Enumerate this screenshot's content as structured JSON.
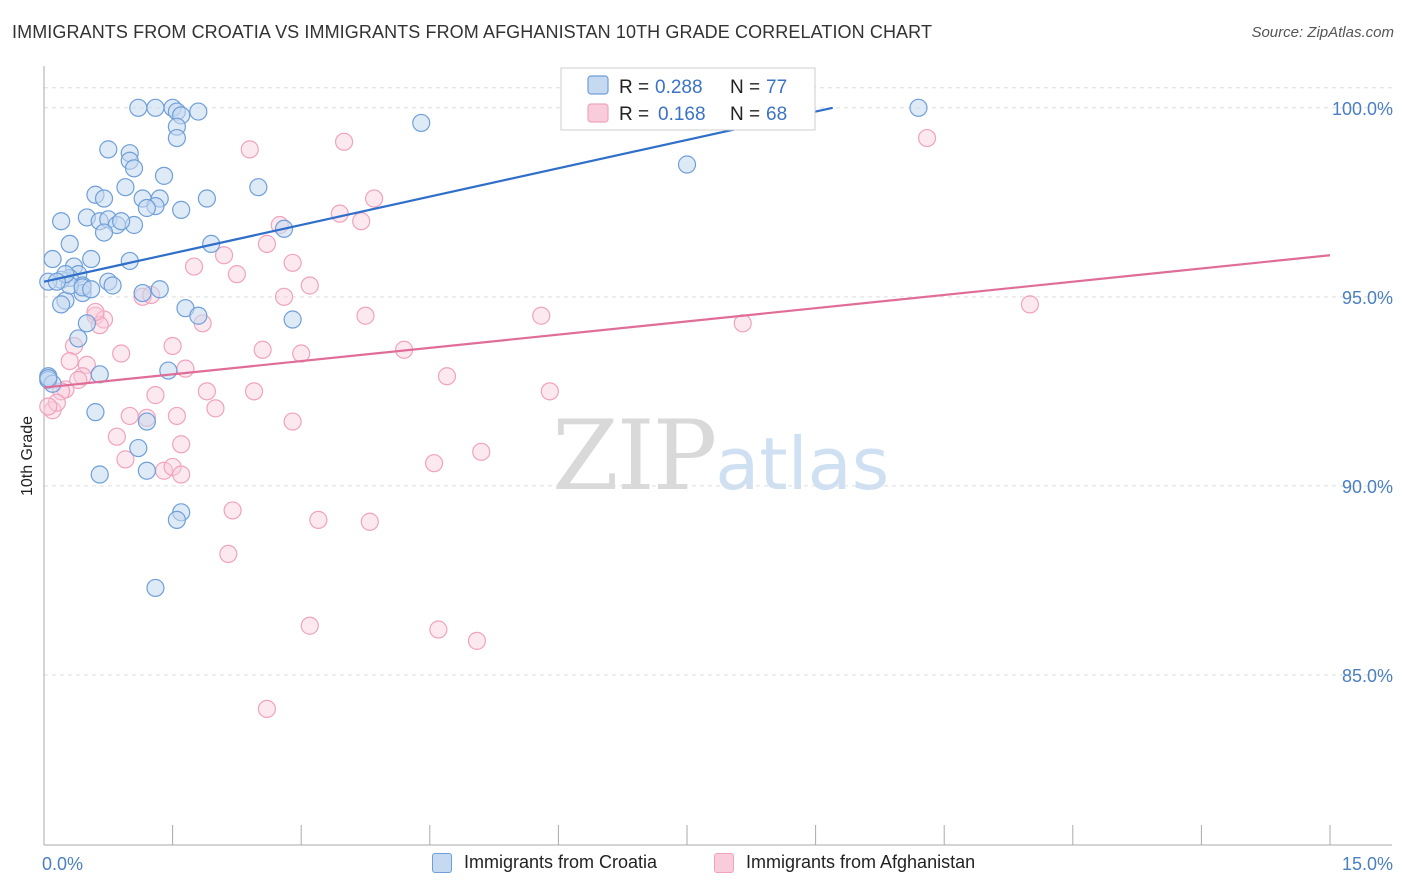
{
  "title": "IMMIGRANTS FROM CROATIA VS IMMIGRANTS FROM AFGHANISTAN 10TH GRADE CORRELATION CHART",
  "source": "Source: ZipAtlas.com",
  "watermark": {
    "zip": "ZIP",
    "atlas": "atlas"
  },
  "colors": {
    "blue": "#6f9fd8",
    "blue_line": "#2f6fc9",
    "pink": "#f0a3bd",
    "pink_line": "#e06d98",
    "grid": "#dddddd"
  },
  "legend": {
    "r_label": "R =",
    "n_label": "N =",
    "rows": [
      {
        "r": "0.288",
        "n": "77"
      },
      {
        "r": "0.168",
        "n": "68"
      }
    ]
  },
  "chart_data": {
    "type": "scatter",
    "title": "IMMIGRANTS FROM CROATIA VS IMMIGRANTS FROM AFGHANISTAN 10TH GRADE CORRELATION CHART",
    "xlabel": "",
    "ylabel": "10th Grade",
    "xlim": [
      0,
      15
    ],
    "ylim": [
      80.5,
      101
    ],
    "x_tick_labels": [
      {
        "value": 0,
        "label": "0.0%"
      },
      {
        "value": 15,
        "label": "15.0%"
      }
    ],
    "y_tick_labels": [
      {
        "value": 100,
        "label": "100.0%"
      },
      {
        "value": 95,
        "label": "95.0%"
      },
      {
        "value": 90,
        "label": "90.0%"
      },
      {
        "value": 85,
        "label": "85.0%"
      }
    ],
    "grid": "horizontal dashed",
    "legend_position": "top-center",
    "series": [
      {
        "name": "Immigrants from Croatia",
        "color": "#6f9fd8",
        "trend": {
          "x": [
            0,
            9.2
          ],
          "y": [
            95.4,
            100.0
          ]
        },
        "points": [
          [
            1.1,
            100
          ],
          [
            1.3,
            100
          ],
          [
            1.5,
            100
          ],
          [
            1.55,
            99.9
          ],
          [
            1.8,
            99.9
          ],
          [
            10.2,
            100
          ],
          [
            1.6,
            99.8
          ],
          [
            1.55,
            99.5
          ],
          [
            1.55,
            99.2
          ],
          [
            4.4,
            99.6
          ],
          [
            0.75,
            98.9
          ],
          [
            1.0,
            98.8
          ],
          [
            1.0,
            98.6
          ],
          [
            1.05,
            98.4
          ],
          [
            1.4,
            98.2
          ],
          [
            0.95,
            97.9
          ],
          [
            0.6,
            97.7
          ],
          [
            0.7,
            97.6
          ],
          [
            1.15,
            97.6
          ],
          [
            1.35,
            97.6
          ],
          [
            1.9,
            97.6
          ],
          [
            2.5,
            97.9
          ],
          [
            7.5,
            98.5
          ],
          [
            1.3,
            97.4
          ],
          [
            1.6,
            97.3
          ],
          [
            0.2,
            97.0
          ],
          [
            0.5,
            97.1
          ],
          [
            0.65,
            97.0
          ],
          [
            0.75,
            97.05
          ],
          [
            0.85,
            96.9
          ],
          [
            1.05,
            96.9
          ],
          [
            0.7,
            96.7
          ],
          [
            2.8,
            96.8
          ],
          [
            0.3,
            96.4
          ],
          [
            1.95,
            96.4
          ],
          [
            0.1,
            96.0
          ],
          [
            0.55,
            96.0
          ],
          [
            1.0,
            95.95
          ],
          [
            0.35,
            95.8
          ],
          [
            0.4,
            95.6
          ],
          [
            0.3,
            95.5
          ],
          [
            0.2,
            95.45
          ],
          [
            0.05,
            95.4
          ],
          [
            0.45,
            95.3
          ],
          [
            0.75,
            95.4
          ],
          [
            0.8,
            95.3
          ],
          [
            1.15,
            95.1
          ],
          [
            1.35,
            95.2
          ],
          [
            0.45,
            95.1
          ],
          [
            0.25,
            94.9
          ],
          [
            0.2,
            94.8
          ],
          [
            1.65,
            94.7
          ],
          [
            1.8,
            94.5
          ],
          [
            2.9,
            94.4
          ],
          [
            0.5,
            94.3
          ],
          [
            0.4,
            93.9
          ],
          [
            0.05,
            92.9
          ],
          [
            0.05,
            92.8
          ],
          [
            0.1,
            92.7
          ],
          [
            0.65,
            92.95
          ],
          [
            1.45,
            93.05
          ],
          [
            0.6,
            91.95
          ],
          [
            1.2,
            91.7
          ],
          [
            1.1,
            91.0
          ],
          [
            1.2,
            90.4
          ],
          [
            0.65,
            90.3
          ],
          [
            1.6,
            89.3
          ],
          [
            1.55,
            89.1
          ],
          [
            1.3,
            87.3
          ],
          [
            0.05,
            92.85
          ],
          [
            0.3,
            95.3
          ],
          [
            0.45,
            95.25
          ],
          [
            0.55,
            95.2
          ],
          [
            0.25,
            95.6
          ],
          [
            0.15,
            95.4
          ],
          [
            0.9,
            97.0
          ],
          [
            1.2,
            97.35
          ]
        ]
      },
      {
        "name": "Immigrants from Afghanistan",
        "color": "#f0a3bd",
        "trend": {
          "x": [
            0,
            15
          ],
          "y": [
            92.6,
            96.1
          ]
        },
        "points": [
          [
            7.2,
            100
          ],
          [
            10.3,
            99.2
          ],
          [
            3.5,
            99.1
          ],
          [
            2.4,
            98.9
          ],
          [
            3.85,
            97.6
          ],
          [
            3.45,
            97.2
          ],
          [
            3.7,
            97.0
          ],
          [
            2.75,
            96.9
          ],
          [
            2.6,
            96.4
          ],
          [
            2.1,
            96.1
          ],
          [
            1.75,
            95.8
          ],
          [
            2.9,
            95.9
          ],
          [
            2.25,
            95.6
          ],
          [
            3.1,
            95.3
          ],
          [
            2.8,
            95.0
          ],
          [
            1.15,
            95.0
          ],
          [
            1.25,
            95.05
          ],
          [
            11.5,
            94.8
          ],
          [
            5.8,
            94.5
          ],
          [
            3.75,
            94.5
          ],
          [
            0.6,
            94.5
          ],
          [
            0.7,
            94.4
          ],
          [
            0.65,
            94.25
          ],
          [
            1.85,
            94.3
          ],
          [
            8.15,
            94.3
          ],
          [
            0.35,
            93.7
          ],
          [
            1.5,
            93.7
          ],
          [
            2.55,
            93.6
          ],
          [
            3.0,
            93.5
          ],
          [
            4.2,
            93.6
          ],
          [
            0.9,
            93.5
          ],
          [
            0.5,
            93.2
          ],
          [
            0.3,
            93.3
          ],
          [
            0.45,
            92.9
          ],
          [
            0.4,
            92.8
          ],
          [
            0.25,
            92.55
          ],
          [
            0.2,
            92.5
          ],
          [
            1.9,
            92.5
          ],
          [
            2.45,
            92.5
          ],
          [
            4.7,
            92.9
          ],
          [
            5.9,
            92.5
          ],
          [
            1.3,
            92.4
          ],
          [
            0.1,
            92.0
          ],
          [
            0.15,
            92.2
          ],
          [
            2.0,
            92.05
          ],
          [
            1.0,
            91.85
          ],
          [
            1.2,
            91.8
          ],
          [
            1.55,
            91.85
          ],
          [
            2.9,
            91.7
          ],
          [
            0.85,
            91.3
          ],
          [
            1.6,
            91.1
          ],
          [
            0.95,
            90.7
          ],
          [
            4.55,
            90.6
          ],
          [
            5.1,
            90.9
          ],
          [
            1.4,
            90.4
          ],
          [
            1.5,
            90.5
          ],
          [
            1.6,
            90.3
          ],
          [
            2.2,
            89.35
          ],
          [
            3.2,
            89.1
          ],
          [
            3.8,
            89.05
          ],
          [
            2.15,
            88.2
          ],
          [
            3.1,
            86.3
          ],
          [
            4.6,
            86.2
          ],
          [
            5.05,
            85.9
          ],
          [
            2.6,
            84.1
          ],
          [
            0.05,
            92.1
          ],
          [
            0.6,
            94.6
          ],
          [
            1.65,
            93.1
          ]
        ]
      }
    ]
  }
}
